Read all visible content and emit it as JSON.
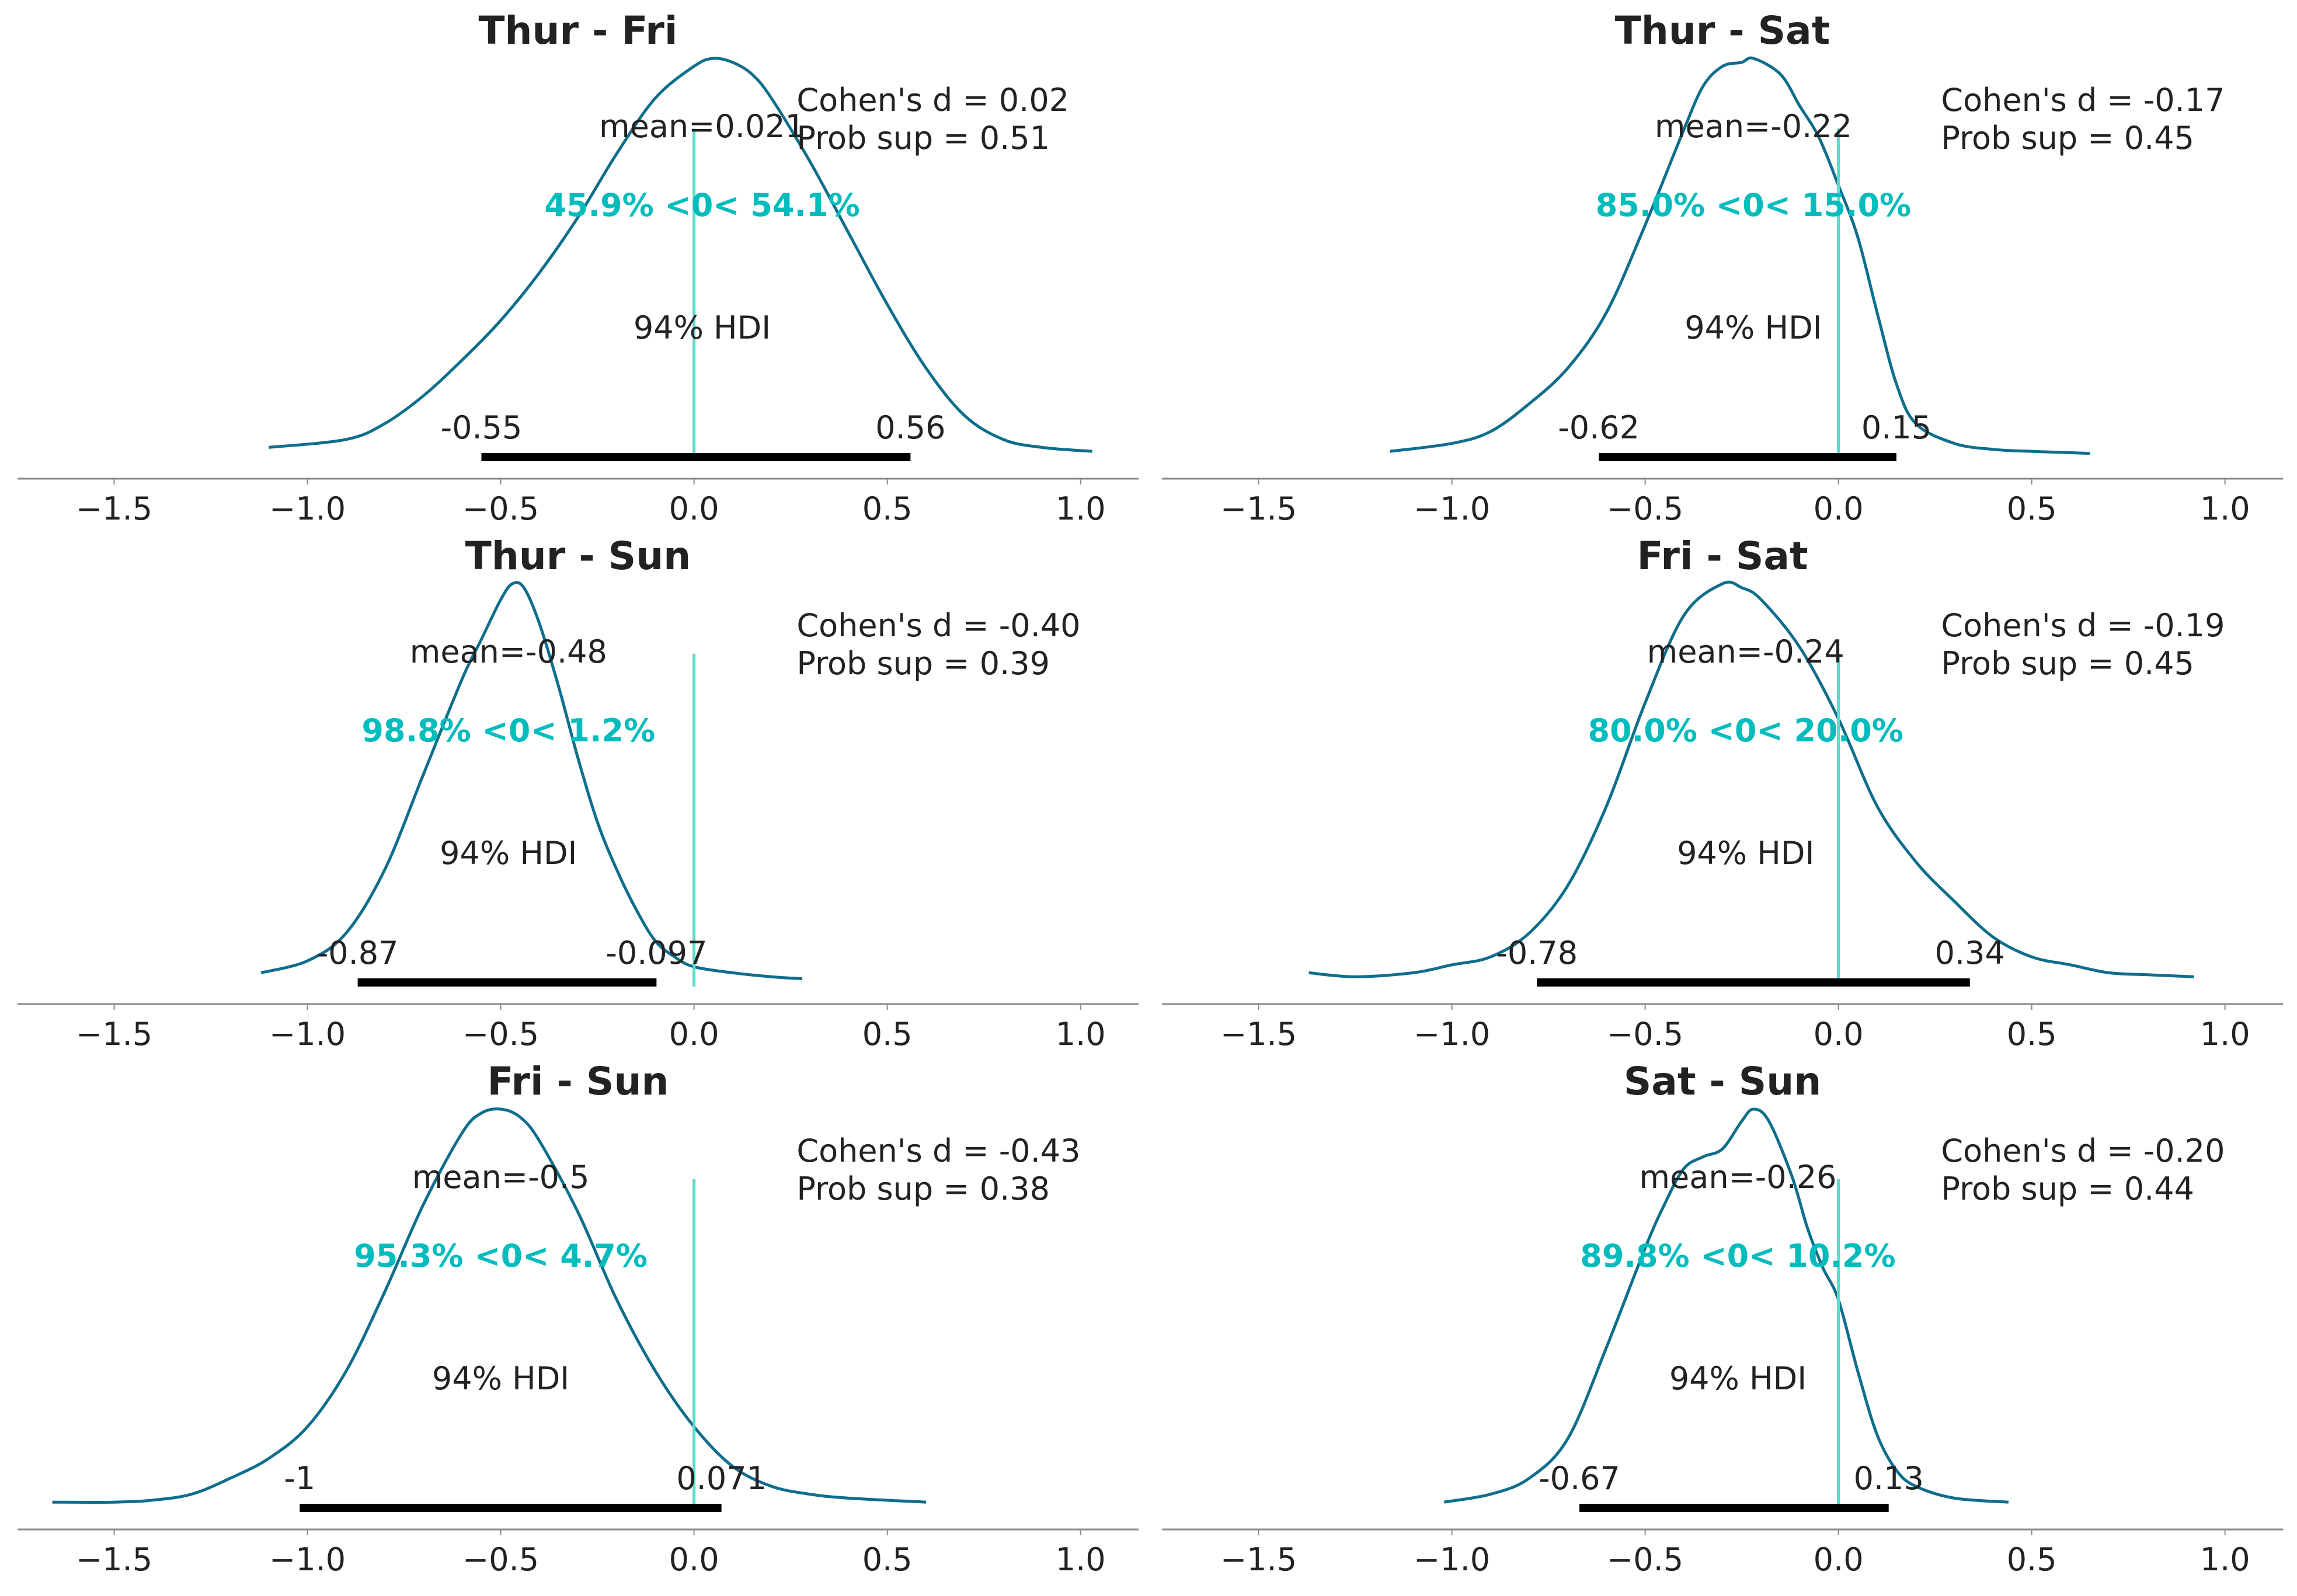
{
  "figure": {
    "colors": {
      "density": "#0e6e8c",
      "reference": "#5fd9cb",
      "prob_text": "#00bcbc",
      "hdi_bar": "#000000",
      "text": "#222222",
      "axis": "#8a8a8a"
    }
  },
  "chart_data": [
    {
      "type": "area",
      "title": "Thur - Fri",
      "xlim": [
        -1.75,
        1.15
      ],
      "xticks": [
        -1.5,
        -1.0,
        -0.5,
        0.0,
        0.5,
        1.0
      ],
      "xtick_labels": [
        "−1.5",
        "−1.0",
        "−0.5",
        "0.0",
        "0.5",
        "1.0"
      ],
      "density": {
        "x": [
          -1.1,
          -0.9,
          -0.8,
          -0.7,
          -0.6,
          -0.5,
          -0.4,
          -0.3,
          -0.2,
          -0.1,
          0.0,
          0.05,
          0.1,
          0.15,
          0.2,
          0.3,
          0.4,
          0.5,
          0.6,
          0.7,
          0.8,
          0.9,
          1.03
        ],
        "y": [
          0.02,
          0.04,
          0.08,
          0.15,
          0.24,
          0.34,
          0.46,
          0.6,
          0.76,
          0.9,
          0.98,
          1.0,
          0.99,
          0.96,
          0.9,
          0.74,
          0.56,
          0.38,
          0.22,
          0.1,
          0.04,
          0.02,
          0.01
        ]
      },
      "reference_value": 0,
      "mean_label": "mean=0.021",
      "mean": 0.021,
      "prob_label": "45.9% <0< 54.1%",
      "hdi_label": "94% HDI",
      "hdi": [
        -0.55,
        0.56
      ],
      "hdi_low_label": "-0.55",
      "hdi_high_label": "0.56",
      "cohens_d": "Cohen's d = 0.02",
      "prob_sup": "Prob sup = 0.51"
    },
    {
      "type": "area",
      "title": "Thur - Sat",
      "xlim": [
        -1.75,
        1.15
      ],
      "xticks": [
        -1.5,
        -1.0,
        -0.5,
        0.0,
        0.5,
        1.0
      ],
      "xtick_labels": [
        "−1.5",
        "−1.0",
        "−0.5",
        "0.0",
        "0.5",
        "1.0"
      ],
      "density": {
        "x": [
          -1.16,
          -1.0,
          -0.9,
          -0.8,
          -0.7,
          -0.6,
          -0.5,
          -0.4,
          -0.35,
          -0.3,
          -0.25,
          -0.22,
          -0.15,
          -0.1,
          -0.05,
          0.0,
          0.05,
          0.1,
          0.15,
          0.2,
          0.3,
          0.4,
          0.5,
          0.65
        ],
        "y": [
          0.01,
          0.03,
          0.06,
          0.13,
          0.22,
          0.36,
          0.58,
          0.82,
          0.93,
          0.98,
          0.99,
          1.0,
          0.96,
          0.88,
          0.8,
          0.68,
          0.55,
          0.36,
          0.18,
          0.08,
          0.03,
          0.015,
          0.01,
          0.005
        ]
      },
      "reference_value": 0,
      "mean_label": "mean=-0.22",
      "mean": -0.22,
      "prob_label": "85.0% <0< 15.0%",
      "hdi_label": "94% HDI",
      "hdi": [
        -0.62,
        0.15
      ],
      "hdi_low_label": "-0.62",
      "hdi_high_label": "0.15",
      "cohens_d": "Cohen's d = -0.17",
      "prob_sup": "Prob sup = 0.45"
    },
    {
      "type": "area",
      "title": "Thur - Sun",
      "xlim": [
        -1.75,
        1.15
      ],
      "xticks": [
        -1.5,
        -1.0,
        -0.5,
        0.0,
        0.5,
        1.0
      ],
      "xtick_labels": [
        "−1.5",
        "−1.0",
        "−0.5",
        "0.0",
        "0.5",
        "1.0"
      ],
      "density": {
        "x": [
          -1.12,
          -1.0,
          -0.9,
          -0.8,
          -0.7,
          -0.6,
          -0.55,
          -0.5,
          -0.47,
          -0.44,
          -0.4,
          -0.35,
          -0.3,
          -0.25,
          -0.2,
          -0.15,
          -0.1,
          -0.05,
          0.0,
          0.1,
          0.2,
          0.28
        ],
        "y": [
          0.02,
          0.05,
          0.12,
          0.28,
          0.52,
          0.76,
          0.86,
          0.96,
          1.0,
          0.99,
          0.9,
          0.74,
          0.56,
          0.4,
          0.28,
          0.18,
          0.1,
          0.06,
          0.035,
          0.02,
          0.01,
          0.005
        ]
      },
      "reference_value": 0,
      "mean_label": "mean=-0.48",
      "mean": -0.48,
      "prob_label": "98.8% <0< 1.2%",
      "hdi_label": "94% HDI",
      "hdi": [
        -0.87,
        -0.097
      ],
      "hdi_low_label": "-0.87",
      "hdi_high_label": "-0.097",
      "cohens_d": "Cohen's d = -0.40",
      "prob_sup": "Prob sup = 0.39"
    },
    {
      "type": "area",
      "title": "Fri - Sat",
      "xlim": [
        -1.75,
        1.15
      ],
      "xticks": [
        -1.5,
        -1.0,
        -0.5,
        0.0,
        0.5,
        1.0
      ],
      "xtick_labels": [
        "−1.5",
        "−1.0",
        "−0.5",
        "0.0",
        "0.5",
        "1.0"
      ],
      "density": {
        "x": [
          -1.37,
          -1.25,
          -1.1,
          -1.0,
          -0.9,
          -0.8,
          -0.7,
          -0.6,
          -0.5,
          -0.4,
          -0.3,
          -0.25,
          -0.2,
          -0.1,
          0.0,
          0.1,
          0.2,
          0.3,
          0.4,
          0.5,
          0.6,
          0.7,
          0.8,
          0.92
        ],
        "y": [
          0.02,
          0.01,
          0.02,
          0.04,
          0.06,
          0.12,
          0.24,
          0.44,
          0.7,
          0.92,
          1.0,
          0.99,
          0.96,
          0.84,
          0.66,
          0.44,
          0.3,
          0.2,
          0.11,
          0.06,
          0.04,
          0.02,
          0.015,
          0.01
        ]
      },
      "reference_value": 0,
      "mean_label": "mean=-0.24",
      "mean": -0.24,
      "prob_label": "80.0% <0< 20.0%",
      "hdi_label": "94% HDI",
      "hdi": [
        -0.78,
        0.34
      ],
      "hdi_low_label": "-0.78",
      "hdi_high_label": "0.34",
      "cohens_d": "Cohen's d = -0.19",
      "prob_sup": "Prob sup = 0.45"
    },
    {
      "type": "area",
      "title": "Fri - Sun",
      "xlim": [
        -1.75,
        1.15
      ],
      "xticks": [
        -1.5,
        -1.0,
        -0.5,
        0.0,
        0.5,
        1.0
      ],
      "xtick_labels": [
        "−1.5",
        "−1.0",
        "−0.5",
        "0.0",
        "0.5",
        "1.0"
      ],
      "density": {
        "x": [
          -1.66,
          -1.5,
          -1.4,
          -1.3,
          -1.2,
          -1.1,
          -1.0,
          -0.9,
          -0.8,
          -0.7,
          -0.6,
          -0.55,
          -0.5,
          -0.45,
          -0.4,
          -0.3,
          -0.2,
          -0.1,
          0.0,
          0.1,
          0.2,
          0.3,
          0.4,
          0.6
        ],
        "y": [
          0.01,
          0.01,
          0.015,
          0.03,
          0.07,
          0.12,
          0.2,
          0.34,
          0.54,
          0.76,
          0.94,
          0.99,
          1.0,
          0.98,
          0.92,
          0.74,
          0.52,
          0.34,
          0.2,
          0.1,
          0.05,
          0.03,
          0.02,
          0.01
        ]
      },
      "reference_value": 0,
      "mean_label": "mean=-0.5",
      "mean": -0.5,
      "prob_label": "95.3% <0< 4.7%",
      "hdi_label": "94% HDI",
      "hdi": [
        -1.02,
        0.071
      ],
      "hdi_low_label": "-1",
      "hdi_high_label": "0.071",
      "cohens_d": "Cohen's d = -0.43",
      "prob_sup": "Prob sup = 0.38"
    },
    {
      "type": "area",
      "title": "Sat - Sun",
      "xlim": [
        -1.75,
        1.15
      ],
      "xticks": [
        -1.5,
        -1.0,
        -0.5,
        0.0,
        0.5,
        1.0
      ],
      "xtick_labels": [
        "−1.5",
        "−1.0",
        "−0.5",
        "0.0",
        "0.5",
        "1.0"
      ],
      "density": {
        "x": [
          -1.02,
          -0.9,
          -0.8,
          -0.7,
          -0.6,
          -0.5,
          -0.45,
          -0.4,
          -0.35,
          -0.3,
          -0.25,
          -0.22,
          -0.18,
          -0.12,
          -0.08,
          -0.04,
          0.0,
          0.05,
          0.1,
          0.15,
          0.2,
          0.3,
          0.44
        ],
        "y": [
          0.01,
          0.03,
          0.07,
          0.17,
          0.4,
          0.65,
          0.76,
          0.85,
          0.88,
          0.9,
          0.97,
          1.0,
          0.97,
          0.83,
          0.7,
          0.6,
          0.52,
          0.34,
          0.18,
          0.09,
          0.05,
          0.02,
          0.01
        ]
      },
      "reference_value": 0,
      "mean_label": "mean=-0.26",
      "mean": -0.26,
      "prob_label": "89.8% <0< 10.2%",
      "hdi_label": "94% HDI",
      "hdi": [
        -0.67,
        0.13
      ],
      "hdi_low_label": "-0.67",
      "hdi_high_label": "0.13",
      "cohens_d": "Cohen's d = -0.20",
      "prob_sup": "Prob sup = 0.44"
    }
  ]
}
